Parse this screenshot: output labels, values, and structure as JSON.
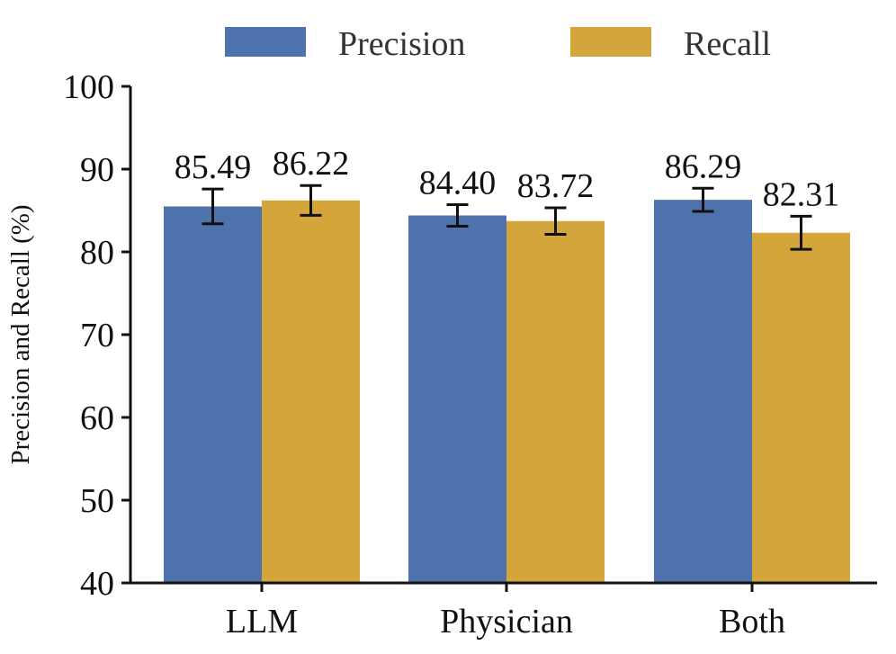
{
  "chart_data": {
    "type": "bar",
    "title": "",
    "xlabel": "",
    "ylabel": "Precision and Recall (%)",
    "ylim": [
      40,
      100
    ],
    "yticks": [
      40,
      50,
      60,
      70,
      80,
      90,
      100
    ],
    "categories": [
      "LLM",
      "Physician",
      "Both"
    ],
    "series": [
      {
        "name": "Precision",
        "color": "#4e72ab",
        "values": [
          85.49,
          84.4,
          86.29
        ],
        "labels": [
          "85.49",
          "84.40",
          "86.29"
        ],
        "errors": [
          2.1,
          1.3,
          1.4
        ]
      },
      {
        "name": "Recall",
        "color": "#d4a53a",
        "values": [
          86.22,
          83.72,
          82.31
        ],
        "labels": [
          "86.22",
          "83.72",
          "82.31"
        ],
        "errors": [
          1.8,
          1.6,
          2.0
        ]
      }
    ],
    "legend_position": "top"
  }
}
